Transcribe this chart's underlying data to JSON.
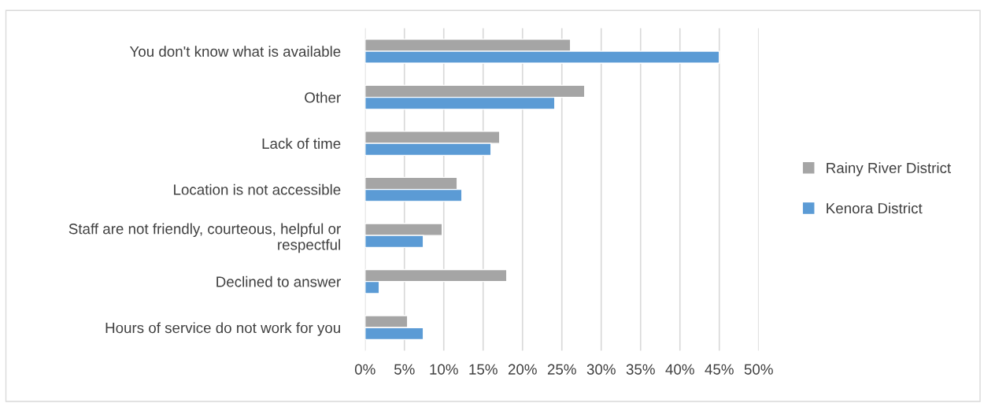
{
  "chart_data": {
    "type": "bar",
    "orientation": "horizontal",
    "categories": [
      "You don't know what is available",
      "Other",
      "Lack of time",
      "Location is not accessible",
      "Staff are not friendly, courteous, helpful or\nrespectful",
      "Declined to answer",
      "Hours of service do not work for you"
    ],
    "series": [
      {
        "name": "Rainy River District",
        "color": "#a5a5a5",
        "values": [
          26.1,
          27.9,
          17.1,
          11.7,
          9.8,
          18.0,
          5.4
        ]
      },
      {
        "name": "Kenora District",
        "color": "#5b9bd5",
        "values": [
          45.0,
          24.1,
          16.0,
          12.3,
          7.4,
          1.8,
          7.4
        ]
      }
    ],
    "xlim": [
      0,
      50
    ],
    "xticks": [
      {
        "value": 0,
        "label": "0%"
      },
      {
        "value": 5,
        "label": "5%"
      },
      {
        "value": 10,
        "label": "10%"
      },
      {
        "value": 15,
        "label": "15%"
      },
      {
        "value": 20,
        "label": "20%"
      },
      {
        "value": 25,
        "label": "25%"
      },
      {
        "value": 30,
        "label": "30%"
      },
      {
        "value": 35,
        "label": "35%"
      },
      {
        "value": 40,
        "label": "40%"
      },
      {
        "value": 45,
        "label": "45%"
      },
      {
        "value": 50,
        "label": "50%"
      }
    ],
    "grid": "x",
    "legend": "right"
  }
}
